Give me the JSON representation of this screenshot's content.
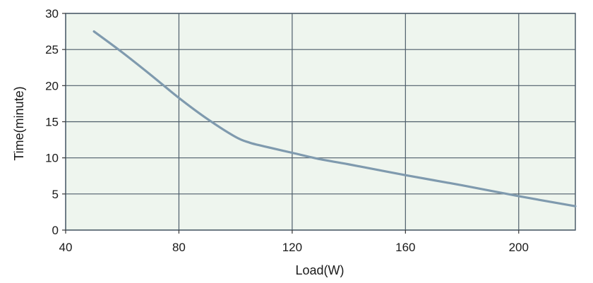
{
  "chart_data": {
    "type": "line",
    "title": "",
    "xlabel": "Load(W)",
    "ylabel": "Time(minute)",
    "xlim": [
      40,
      220
    ],
    "ylim": [
      0,
      30
    ],
    "x_ticks": [
      40,
      80,
      120,
      160,
      200
    ],
    "y_ticks": [
      0,
      5,
      10,
      15,
      20,
      25,
      30
    ],
    "grid": true,
    "legend": "none",
    "colors": {
      "plot_background": "#eef5ee",
      "grid": "#4d5d6a",
      "series": "#7f9aae"
    },
    "series": [
      {
        "x": [
          50,
          60,
          70,
          80,
          90,
          100,
          105,
          110,
          120,
          130,
          140,
          160,
          180,
          200,
          220
        ],
        "values": [
          27.5,
          24.6,
          21.5,
          18.3,
          15.4,
          12.9,
          12.1,
          11.6,
          10.7,
          9.8,
          9.1,
          7.6,
          6.2,
          4.7,
          3.3
        ]
      }
    ]
  }
}
